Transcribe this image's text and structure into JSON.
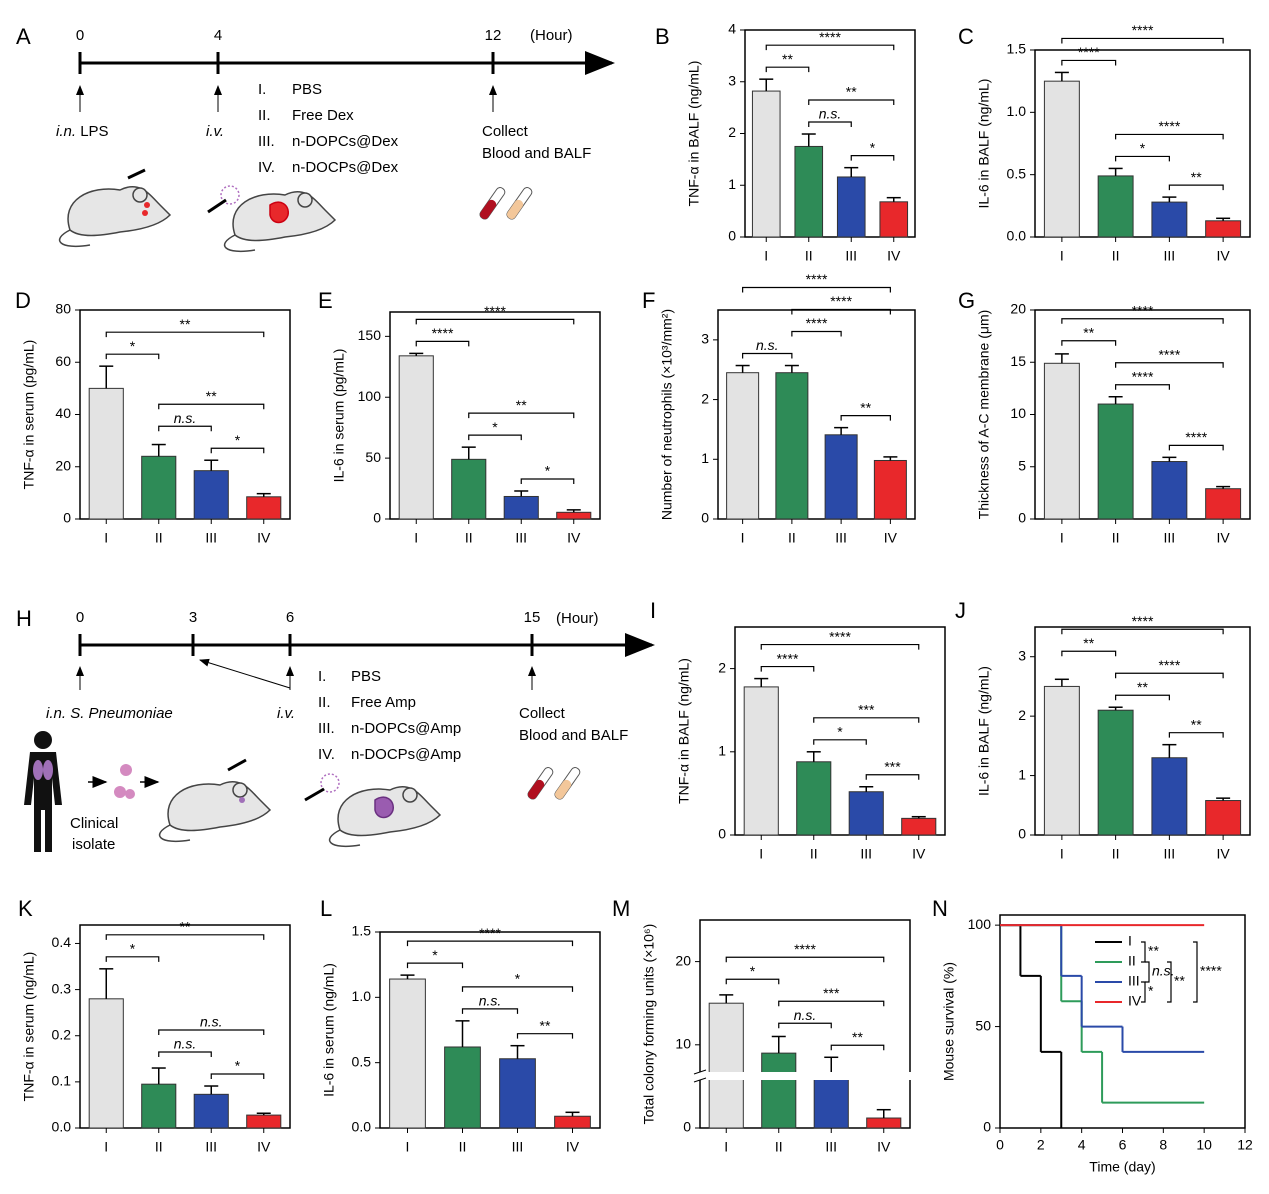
{
  "diagrams": [
    {
      "panel": "A",
      "times": [
        0,
        4,
        12
      ],
      "unit": "(Hour)",
      "route": "i.n.",
      "agent": "LPS",
      "injection": "i.v.",
      "groups": [
        {
          "numeral": "I.",
          "name": "PBS"
        },
        {
          "numeral": "II.",
          "name": "Free Dex"
        },
        {
          "numeral": "III.",
          "name": "n-DOPCs@Dex"
        },
        {
          "numeral": "IV.",
          "name": "n-DOCPs@Dex"
        }
      ],
      "collect": "Collect",
      "samples": "Blood and BALF"
    },
    {
      "panel": "H",
      "times": [
        0,
        3,
        6,
        15
      ],
      "unit": "(Hour)",
      "route": "i.n.",
      "agent": "S. Pneumoniae",
      "injection": "i.v.",
      "groups": [
        {
          "numeral": "I.",
          "name": "PBS"
        },
        {
          "numeral": "II.",
          "name": "Free Amp"
        },
        {
          "numeral": "III.",
          "name": "n-DOPCs@Amp"
        },
        {
          "numeral": "IV.",
          "name": "n-DOCPs@Amp"
        }
      ],
      "collect": "Collect",
      "samples": "Blood and BALF",
      "source": [
        "Clinical",
        "isolate"
      ]
    }
  ],
  "chart_data": [
    {
      "type": "bar",
      "panel": "B",
      "ylabel": "TNF-α in BALF (ng/mL)",
      "categories": [
        "I",
        "II",
        "III",
        "IV"
      ],
      "values": [
        2.82,
        1.75,
        1.16,
        0.68
      ],
      "errors": [
        0.23,
        0.24,
        0.18,
        0.08
      ],
      "colors": [
        "#e3e3e3",
        "#2e8b57",
        "#2a4aa8",
        "#e8282b"
      ],
      "ylim": [
        0,
        4
      ],
      "yticks": [
        0,
        1,
        2,
        3,
        4
      ],
      "comparisons": [
        {
          "from": "III",
          "to": "IV",
          "label": "*"
        },
        {
          "from": "II",
          "to": "III",
          "label": "n.s."
        },
        {
          "from": "II",
          "to": "IV",
          "label": "**"
        },
        {
          "from": "I",
          "to": "II",
          "label": "**"
        },
        {
          "from": "I",
          "to": "IV",
          "label": "****"
        }
      ]
    },
    {
      "type": "bar",
      "panel": "C",
      "ylabel": "IL-6 in BALF (ng/mL)",
      "categories": [
        "I",
        "II",
        "III",
        "IV"
      ],
      "values": [
        1.25,
        0.49,
        0.28,
        0.13
      ],
      "errors": [
        0.07,
        0.06,
        0.04,
        0.02
      ],
      "colors": [
        "#e3e3e3",
        "#2e8b57",
        "#2a4aa8",
        "#e8282b"
      ],
      "ylim": [
        0,
        1.5
      ],
      "yticks": [
        {
          "value": 0,
          "label": "0.0"
        },
        0.5,
        {
          "value": 1,
          "label": "1.0"
        },
        1.5
      ],
      "comparisons": [
        {
          "from": "III",
          "to": "IV",
          "label": "**"
        },
        {
          "from": "II",
          "to": "III",
          "label": "*"
        },
        {
          "from": "II",
          "to": "IV",
          "label": "****"
        },
        {
          "from": "I",
          "to": "II",
          "label": "****"
        },
        {
          "from": "I",
          "to": "IV",
          "label": "****"
        }
      ]
    },
    {
      "type": "bar",
      "panel": "D",
      "ylabel": "TNF-α in serum (pg/mL)",
      "categories": [
        "I",
        "II",
        "III",
        "IV"
      ],
      "values": [
        50,
        24,
        18.5,
        8.5
      ],
      "errors": [
        8.5,
        4.5,
        4,
        1.2
      ],
      "colors": [
        "#e3e3e3",
        "#2e8b57",
        "#2a4aa8",
        "#e8282b"
      ],
      "ylim": [
        0,
        80
      ],
      "yticks": [
        0,
        20,
        40,
        60,
        80
      ],
      "comparisons": [
        {
          "from": "III",
          "to": "IV",
          "label": "*"
        },
        {
          "from": "II",
          "to": "III",
          "label": "n.s."
        },
        {
          "from": "II",
          "to": "IV",
          "label": "**"
        },
        {
          "from": "I",
          "to": "II",
          "label": "*"
        },
        {
          "from": "I",
          "to": "IV",
          "label": "**"
        }
      ]
    },
    {
      "type": "bar",
      "panel": "E",
      "ylabel": "IL-6 in serum (pg/mL)",
      "categories": [
        "I",
        "II",
        "III",
        "IV"
      ],
      "values": [
        134,
        49,
        18.5,
        5.5
      ],
      "errors": [
        2,
        10,
        4.5,
        2
      ],
      "colors": [
        "#e3e3e3",
        "#2e8b57",
        "#2a4aa8",
        "#e8282b"
      ],
      "ylim": [
        0,
        170
      ],
      "yticks": [
        0,
        50,
        100,
        150
      ],
      "comparisons": [
        {
          "from": "III",
          "to": "IV",
          "label": "*"
        },
        {
          "from": "II",
          "to": "III",
          "label": "*"
        },
        {
          "from": "II",
          "to": "IV",
          "label": "**"
        },
        {
          "from": "I",
          "to": "II",
          "label": "****"
        },
        {
          "from": "I",
          "to": "IV",
          "label": "****"
        }
      ]
    },
    {
      "type": "bar",
      "panel": "F",
      "ylabel": "Number of neutrophils (×10³/mm²)",
      "categories": [
        "I",
        "II",
        "III",
        "IV"
      ],
      "values": [
        2.45,
        2.45,
        1.41,
        0.98
      ],
      "errors": [
        0.12,
        0.12,
        0.12,
        0.06
      ],
      "colors": [
        "#e3e3e3",
        "#2e8b57",
        "#2a4aa8",
        "#e8282b"
      ],
      "ylim": [
        0,
        3.5
      ],
      "yticks": [
        0,
        1,
        2,
        3
      ],
      "comparisons": [
        {
          "from": "III",
          "to": "IV",
          "label": "**"
        },
        {
          "from": "I",
          "to": "II",
          "label": "n.s."
        },
        {
          "from": "II",
          "to": "III",
          "label": "****"
        },
        {
          "from": "II",
          "to": "IV",
          "label": "****"
        },
        {
          "from": "I",
          "to": "IV",
          "label": "****"
        }
      ]
    },
    {
      "type": "bar",
      "panel": "G",
      "ylabel": "Thickness of A-C membrane (μm)",
      "categories": [
        "I",
        "II",
        "III",
        "IV"
      ],
      "values": [
        14.9,
        11,
        5.5,
        2.9
      ],
      "errors": [
        0.9,
        0.7,
        0.4,
        0.2
      ],
      "colors": [
        "#e3e3e3",
        "#2e8b57",
        "#2a4aa8",
        "#e8282b"
      ],
      "ylim": [
        0,
        20
      ],
      "yticks": [
        0,
        5,
        10,
        15,
        20
      ],
      "comparisons": [
        {
          "from": "III",
          "to": "IV",
          "label": "****"
        },
        {
          "from": "II",
          "to": "III",
          "label": "****"
        },
        {
          "from": "II",
          "to": "IV",
          "label": "****"
        },
        {
          "from": "I",
          "to": "II",
          "label": "**"
        },
        {
          "from": "I",
          "to": "IV",
          "label": "****"
        }
      ]
    },
    {
      "type": "bar",
      "panel": "I",
      "ylabel": "TNF-α in BALF (ng/mL)",
      "categories": [
        "I",
        "II",
        "III",
        "IV"
      ],
      "values": [
        1.78,
        0.88,
        0.52,
        0.2
      ],
      "errors": [
        0.1,
        0.12,
        0.06,
        0.02
      ],
      "colors": [
        "#e3e3e3",
        "#2e8b57",
        "#2a4aa8",
        "#e8282b"
      ],
      "ylim": [
        0,
        2.5
      ],
      "yticks": [
        0,
        1,
        2
      ],
      "comparisons": [
        {
          "from": "III",
          "to": "IV",
          "label": "***"
        },
        {
          "from": "II",
          "to": "III",
          "label": "*"
        },
        {
          "from": "II",
          "to": "IV",
          "label": "***"
        },
        {
          "from": "I",
          "to": "II",
          "label": "****"
        },
        {
          "from": "I",
          "to": "IV",
          "label": "****"
        }
      ]
    },
    {
      "type": "bar",
      "panel": "J",
      "ylabel": "IL-6 in BALF (ng/mL)",
      "categories": [
        "I",
        "II",
        "III",
        "IV"
      ],
      "values": [
        2.5,
        2.1,
        1.3,
        0.58
      ],
      "errors": [
        0.12,
        0.05,
        0.22,
        0.04
      ],
      "colors": [
        "#e3e3e3",
        "#2e8b57",
        "#2a4aa8",
        "#e8282b"
      ],
      "ylim": [
        0,
        3.5
      ],
      "yticks": [
        0,
        1,
        2,
        3
      ],
      "comparisons": [
        {
          "from": "III",
          "to": "IV",
          "label": "**"
        },
        {
          "from": "II",
          "to": "III",
          "label": "**"
        },
        {
          "from": "II",
          "to": "IV",
          "label": "****"
        },
        {
          "from": "I",
          "to": "II",
          "label": "**"
        },
        {
          "from": "I",
          "to": "IV",
          "label": "****"
        }
      ]
    },
    {
      "type": "bar",
      "panel": "K",
      "ylabel": "TNF-α in serum (ng/mL)",
      "categories": [
        "I",
        "II",
        "III",
        "IV"
      ],
      "values": [
        0.28,
        0.095,
        0.073,
        0.028
      ],
      "errors": [
        0.065,
        0.035,
        0.018,
        0.004
      ],
      "colors": [
        "#e3e3e3",
        "#2e8b57",
        "#2a4aa8",
        "#e8282b"
      ],
      "ylim": [
        0,
        0.44
      ],
      "yticks": [
        {
          "value": 0,
          "label": "0.0"
        },
        0.1,
        0.2,
        0.3,
        0.4
      ],
      "comparisons": [
        {
          "from": "III",
          "to": "IV",
          "label": "*"
        },
        {
          "from": "II",
          "to": "III",
          "label": "n.s."
        },
        {
          "from": "II",
          "to": "IV",
          "label": "n.s."
        },
        {
          "from": "I",
          "to": "II",
          "label": "*"
        },
        {
          "from": "I",
          "to": "IV",
          "label": "**"
        }
      ]
    },
    {
      "type": "bar",
      "panel": "L",
      "ylabel": "IL-6 in serum (ng/mL)",
      "categories": [
        "I",
        "II",
        "III",
        "IV"
      ],
      "values": [
        1.14,
        0.62,
        0.53,
        0.09
      ],
      "errors": [
        0.03,
        0.2,
        0.1,
        0.03
      ],
      "colors": [
        "#e3e3e3",
        "#2e8b57",
        "#2a4aa8",
        "#e8282b"
      ],
      "ylim": [
        0,
        1.5
      ],
      "yticks": [
        {
          "value": 0,
          "label": "0.0"
        },
        0.5,
        {
          "value": 1,
          "label": "1.0"
        },
        1.5
      ],
      "comparisons": [
        {
          "from": "III",
          "to": "IV",
          "label": "**"
        },
        {
          "from": "II",
          "to": "III",
          "label": "n.s."
        },
        {
          "from": "II",
          "to": "IV",
          "label": "*"
        },
        {
          "from": "I",
          "to": "II",
          "label": "*"
        },
        {
          "from": "I",
          "to": "IV",
          "label": "****"
        }
      ]
    },
    {
      "type": "bar",
      "panel": "M",
      "ylabel": "Total colony forming units (×10⁶)",
      "categories": [
        "I",
        "II",
        "III",
        "IV"
      ],
      "values": [
        15,
        9,
        6.5,
        1.2
      ],
      "errors": [
        1,
        2,
        2,
        1
      ],
      "colors": [
        "#e3e3e3",
        "#2e8b57",
        "#2a4aa8",
        "#e8282b"
      ],
      "ylim": [
        0,
        25
      ],
      "yticks": [
        0,
        10,
        20
      ],
      "comparisons": [
        {
          "from": "III",
          "to": "IV",
          "label": "**"
        },
        {
          "from": "II",
          "to": "III",
          "label": "n.s."
        },
        {
          "from": "II",
          "to": "IV",
          "label": "***"
        },
        {
          "from": "I",
          "to": "II",
          "label": "*"
        },
        {
          "from": "I",
          "to": "IV",
          "label": "****"
        }
      ]
    },
    {
      "type": "line",
      "panel": "N",
      "ylabel": "Mouse survival (%)",
      "xlabel": "Time (day)",
      "xlim": [
        0,
        12
      ],
      "xticks": [
        0,
        2,
        4,
        6,
        8,
        10,
        12
      ],
      "ylim": [
        0,
        105
      ],
      "yticks": [
        0,
        50,
        100
      ],
      "series": [
        {
          "name": "I",
          "color": "#000000",
          "x": [
            0,
            1,
            2,
            3
          ],
          "values": [
            100,
            75,
            37.5,
            0
          ]
        },
        {
          "name": "II",
          "color": "#2e9b5a",
          "x": [
            0,
            3,
            4,
            5,
            10
          ],
          "values": [
            100,
            62.5,
            37.5,
            12.5,
            12.5
          ]
        },
        {
          "name": "III",
          "color": "#2a4aa8",
          "x": [
            0,
            3,
            4,
            6,
            10
          ],
          "values": [
            100,
            75,
            50,
            37.5,
            37.5
          ]
        },
        {
          "name": "IV",
          "color": "#e8282b",
          "x": [
            0,
            10
          ],
          "values": [
            100,
            100
          ]
        }
      ],
      "comparisons": [
        {
          "from": "I",
          "to": "II",
          "label": "**"
        },
        {
          "from": "II",
          "to": "III",
          "label": "n.s."
        },
        {
          "from": "III",
          "to": "IV",
          "label": "*"
        },
        {
          "from": "II",
          "to": "IV",
          "label": "**"
        },
        {
          "from": "I",
          "to": "IV",
          "label": "****"
        }
      ]
    }
  ]
}
